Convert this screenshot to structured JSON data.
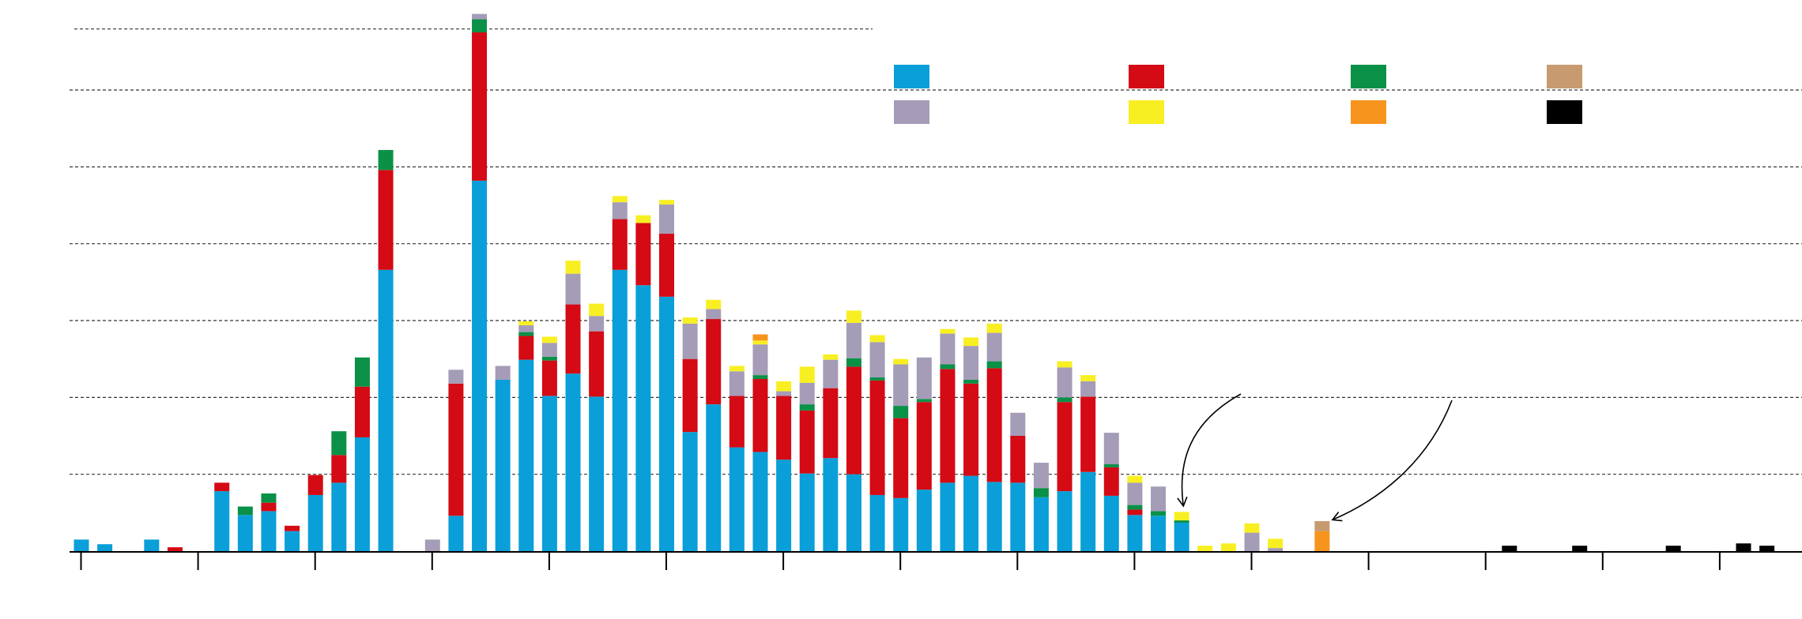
{
  "chart_data": {
    "type": "bar",
    "stacked": true,
    "title": "",
    "xlabel": "",
    "ylabel": "",
    "ylim": [
      0,
      700
    ],
    "gridlines": [
      100,
      200,
      300,
      400,
      500,
      600
    ],
    "grid": true,
    "legend_position": "top-right",
    "colors": {
      "s1": "#0a9fd8",
      "s2": "#d40a14",
      "s3": "#0a9147",
      "s4": "#c79b6f",
      "s5": "#a59cb8",
      "s6": "#f8ef22",
      "s7": "#f7941e",
      "s8": "#000000"
    },
    "legend": [
      {
        "key": "s1"
      },
      {
        "key": "s2"
      },
      {
        "key": "s3"
      },
      {
        "key": "s4"
      },
      {
        "key": "s5"
      },
      {
        "key": "s6"
      },
      {
        "key": "s7"
      },
      {
        "key": "s8"
      }
    ],
    "bars": [
      {
        "x": 0,
        "s1": 15
      },
      {
        "x": 1,
        "s1": 9
      },
      {
        "x": 3,
        "s1": 15
      },
      {
        "x": 4,
        "s2": 5
      },
      {
        "x": 6,
        "s1": 78,
        "s2": 11
      },
      {
        "x": 7,
        "s1": 47,
        "s3": 11
      },
      {
        "x": 8,
        "s1": 52,
        "s2": 11,
        "s3": 12
      },
      {
        "x": 9,
        "s1": 26,
        "s2": 7
      },
      {
        "x": 10,
        "s1": 73,
        "s2": 26
      },
      {
        "x": 11,
        "s1": 89,
        "s2": 36,
        "s3": 31
      },
      {
        "x": 12,
        "s1": 148,
        "s2": 66,
        "s3": 38
      },
      {
        "x": 13,
        "s1": 366,
        "s2": 130,
        "s3": 26
      },
      {
        "x": 15,
        "s5": 15
      },
      {
        "x": 16,
        "s1": 46,
        "s2": 172,
        "s5": 18
      },
      {
        "x": 17,
        "s1": 482,
        "s2": 193,
        "s3": 17,
        "s5": 7
      },
      {
        "x": 18,
        "s1": 223,
        "s5": 18
      },
      {
        "x": 19,
        "s1": 249,
        "s2": 31,
        "s3": 5,
        "s5": 9,
        "s6": 5
      },
      {
        "x": 20,
        "s1": 202,
        "s2": 46,
        "s3": 5,
        "s5": 18,
        "s6": 8
      },
      {
        "x": 21,
        "s1": 231,
        "s2": 90,
        "s5": 40,
        "s6": 17
      },
      {
        "x": 22,
        "s1": 201,
        "s2": 85,
        "s5": 20,
        "s6": 16
      },
      {
        "x": 23,
        "s1": 366,
        "s2": 66,
        "s5": 22,
        "s6": 8
      },
      {
        "x": 24,
        "s1": 346,
        "s2": 81,
        "s6": 10
      },
      {
        "x": 25,
        "s1": 331,
        "s2": 82,
        "s5": 38,
        "s6": 6
      },
      {
        "x": 26,
        "s1": 155,
        "s2": 95,
        "s5": 46,
        "s6": 8
      },
      {
        "x": 27,
        "s1": 191,
        "s2": 111,
        "s5": 13,
        "s6": 12
      },
      {
        "x": 28,
        "s1": 135,
        "s2": 67,
        "s5": 32,
        "s6": 7
      },
      {
        "x": 29,
        "s1": 129,
        "s2": 95,
        "s3": 5,
        "s5": 40,
        "s6": 5,
        "s7": 8
      },
      {
        "x": 30,
        "s1": 119,
        "s2": 83,
        "s5": 6,
        "s6": 13
      },
      {
        "x": 31,
        "s1": 101,
        "s2": 82,
        "s3": 8,
        "s5": 28,
        "s6": 21
      },
      {
        "x": 32,
        "s1": 121,
        "s2": 91,
        "s5": 37,
        "s6": 7
      },
      {
        "x": 33,
        "s1": 100,
        "s2": 140,
        "s3": 11,
        "s5": 46,
        "s6": 16
      },
      {
        "x": 34,
        "s1": 73,
        "s2": 149,
        "s3": 4,
        "s5": 46,
        "s6": 9
      },
      {
        "x": 35,
        "s1": 69,
        "s2": 104,
        "s3": 16,
        "s5": 54,
        "s6": 7
      },
      {
        "x": 36,
        "s1": 80,
        "s2": 114,
        "s3": 4,
        "s5": 54
      },
      {
        "x": 37,
        "s1": 89,
        "s2": 148,
        "s3": 6,
        "s5": 40,
        "s6": 6
      },
      {
        "x": 38,
        "s1": 98,
        "s2": 120,
        "s3": 5,
        "s5": 44,
        "s6": 11
      },
      {
        "x": 39,
        "s1": 90,
        "s2": 148,
        "s3": 9,
        "s5": 37,
        "s6": 12
      },
      {
        "x": 40,
        "s1": 89,
        "s2": 61,
        "s5": 30
      },
      {
        "x": 41,
        "s1": 70,
        "s3": 12,
        "s5": 33
      },
      {
        "x": 42,
        "s1": 78,
        "s2": 116,
        "s3": 6,
        "s5": 39,
        "s6": 8
      },
      {
        "x": 43,
        "s1": 103,
        "s2": 98,
        "s5": 20,
        "s6": 8
      },
      {
        "x": 44,
        "s1": 72,
        "s2": 37,
        "s3": 4,
        "s5": 41
      },
      {
        "x": 45,
        "s1": 47,
        "s2": 7,
        "s3": 6,
        "s5": 29,
        "s6": 9
      },
      {
        "x": 46,
        "s1": 46,
        "s3": 6,
        "s5": 32
      },
      {
        "x": 47,
        "s1": 37,
        "s3": 3,
        "s6": 11
      },
      {
        "x": 48,
        "s6": 7
      },
      {
        "x": 49,
        "s6": 10
      },
      {
        "x": 50,
        "s5": 24,
        "s6": 12
      },
      {
        "x": 51,
        "s5": 4,
        "s6": 12
      },
      {
        "x": 53,
        "s7": 26,
        "s4": 13
      },
      {
        "x": 61,
        "s8": 7
      },
      {
        "x": 64,
        "s8": 7
      },
      {
        "x": 68,
        "s8": 7
      },
      {
        "x": 71,
        "s8": 10
      },
      {
        "x": 72,
        "s8": 7
      }
    ],
    "x_ticks": [
      0,
      5,
      10,
      15,
      20,
      25,
      30,
      35,
      40,
      45,
      50,
      55,
      60,
      65,
      70
    ],
    "annotations": [
      {
        "type": "arrow",
        "target_x": 47
      },
      {
        "type": "arrow",
        "target_x": 53
      }
    ]
  }
}
